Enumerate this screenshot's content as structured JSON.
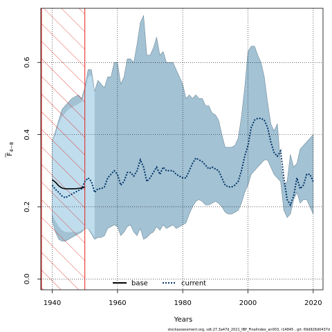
{
  "chart_data": {
    "type": "line",
    "xlabel": "Years",
    "ylabel_main": "F",
    "ylabel_sub": "4−8",
    "xlim": [
      1936.5,
      2023
    ],
    "ylim": [
      -0.03,
      0.75
    ],
    "xticks": [
      1940,
      1960,
      1980,
      2000,
      2020
    ],
    "yticks": [
      0.0,
      0.2,
      0.4,
      0.6
    ],
    "ytick_labels": [
      "0.0",
      "0.2",
      "0.4",
      "0.6"
    ],
    "grid": true,
    "hatched_region": {
      "x0": 1936.5,
      "x1": 1950
    },
    "series": [
      {
        "name": "base",
        "style": "solid",
        "color": "#000000",
        "x": [
          1940,
          1941,
          1942,
          1943,
          1944,
          1945,
          1946,
          1947,
          1948,
          1949,
          1950
        ],
        "y": [
          0.275,
          0.268,
          0.258,
          0.252,
          0.25,
          0.25,
          0.25,
          0.25,
          0.251,
          0.252,
          0.255
        ]
      },
      {
        "name": "current",
        "style": "dotted",
        "color": "#003366",
        "x": [
          1940,
          1941,
          1942,
          1943,
          1944,
          1945,
          1946,
          1947,
          1948,
          1949,
          1950,
          1951,
          1952,
          1953,
          1954,
          1955,
          1956,
          1957,
          1958,
          1959,
          1960,
          1961,
          1962,
          1963,
          1964,
          1965,
          1966,
          1967,
          1968,
          1969,
          1970,
          1971,
          1972,
          1973,
          1974,
          1975,
          1976,
          1977,
          1978,
          1979,
          1980,
          1981,
          1982,
          1983,
          1984,
          1985,
          1986,
          1987,
          1988,
          1989,
          1990,
          1991,
          1992,
          1993,
          1994,
          1995,
          1996,
          1997,
          1998,
          1999,
          2000,
          2001,
          2002,
          2003,
          2004,
          2005,
          2006,
          2007,
          2008,
          2009,
          2010,
          2011,
          2012,
          2013,
          2014,
          2015,
          2016,
          2017,
          2018,
          2019,
          2020
        ],
        "y": [
          0.26,
          0.248,
          0.24,
          0.23,
          0.225,
          0.23,
          0.235,
          0.24,
          0.245,
          0.25,
          0.27,
          0.28,
          0.27,
          0.24,
          0.25,
          0.25,
          0.255,
          0.28,
          0.29,
          0.3,
          0.29,
          0.26,
          0.27,
          0.295,
          0.295,
          0.285,
          0.3,
          0.33,
          0.31,
          0.27,
          0.28,
          0.295,
          0.31,
          0.29,
          0.31,
          0.3,
          0.3,
          0.3,
          0.29,
          0.285,
          0.28,
          0.28,
          0.3,
          0.32,
          0.335,
          0.33,
          0.325,
          0.315,
          0.305,
          0.31,
          0.305,
          0.3,
          0.28,
          0.26,
          0.255,
          0.255,
          0.26,
          0.27,
          0.3,
          0.34,
          0.37,
          0.42,
          0.44,
          0.445,
          0.445,
          0.44,
          0.42,
          0.38,
          0.35,
          0.34,
          0.355,
          0.28,
          0.22,
          0.205,
          0.23,
          0.28,
          0.25,
          0.26,
          0.29,
          0.29,
          0.27
        ]
      }
    ],
    "band_outer": {
      "x": [
        1940,
        1941,
        1942,
        1943,
        1944,
        1945,
        1946,
        1947,
        1948,
        1949,
        1950,
        1951,
        1952,
        1953,
        1954,
        1955,
        1956,
        1957,
        1958,
        1959,
        1960,
        1961,
        1962,
        1963,
        1964,
        1965,
        1966,
        1967,
        1968,
        1969,
        1970,
        1971,
        1972,
        1973,
        1974,
        1975,
        1976,
        1977,
        1978,
        1979,
        1980,
        1981,
        1982,
        1983,
        1984,
        1985,
        1986,
        1987,
        1988,
        1989,
        1990,
        1991,
        1992,
        1993,
        1994,
        1995,
        1996,
        1997,
        1998,
        1999,
        2000,
        2001,
        2002,
        2003,
        2004,
        2005,
        2006,
        2007,
        2008,
        2009,
        2010,
        2011,
        2012,
        2013,
        2014,
        2015,
        2016,
        2017,
        2018,
        2019,
        2020
      ],
      "upper": [
        0.38,
        0.41,
        0.44,
        0.47,
        0.48,
        0.49,
        0.5,
        0.505,
        0.51,
        0.5,
        0.53,
        0.58,
        0.58,
        0.52,
        0.55,
        0.54,
        0.53,
        0.56,
        0.56,
        0.6,
        0.6,
        0.54,
        0.56,
        0.61,
        0.61,
        0.6,
        0.65,
        0.71,
        0.73,
        0.62,
        0.62,
        0.64,
        0.67,
        0.62,
        0.63,
        0.6,
        0.6,
        0.6,
        0.58,
        0.56,
        0.54,
        0.5,
        0.51,
        0.5,
        0.51,
        0.5,
        0.5,
        0.48,
        0.48,
        0.46,
        0.455,
        0.44,
        0.4,
        0.365,
        0.365,
        0.365,
        0.37,
        0.39,
        0.45,
        0.53,
        0.63,
        0.645,
        0.645,
        0.62,
        0.6,
        0.56,
        0.49,
        0.43,
        0.41,
        0.43,
        0.32,
        0.26,
        0.27,
        0.345,
        0.31,
        0.32,
        0.36,
        0.37,
        0.38,
        0.39,
        0.4
      ],
      "lower": [
        0.16,
        0.13,
        0.11,
        0.105,
        0.105,
        0.11,
        0.115,
        0.12,
        0.125,
        0.13,
        0.14,
        0.14,
        0.125,
        0.11,
        0.115,
        0.115,
        0.12,
        0.14,
        0.145,
        0.15,
        0.145,
        0.12,
        0.13,
        0.145,
        0.15,
        0.13,
        0.12,
        0.14,
        0.11,
        0.115,
        0.125,
        0.13,
        0.145,
        0.135,
        0.15,
        0.14,
        0.145,
        0.15,
        0.14,
        0.145,
        0.15,
        0.155,
        0.18,
        0.2,
        0.215,
        0.22,
        0.215,
        0.205,
        0.205,
        0.21,
        0.215,
        0.21,
        0.2,
        0.185,
        0.18,
        0.18,
        0.185,
        0.19,
        0.21,
        0.24,
        0.26,
        0.29,
        0.3,
        0.31,
        0.32,
        0.33,
        0.33,
        0.31,
        0.29,
        0.28,
        0.27,
        0.19,
        0.17,
        0.18,
        0.22,
        0.24,
        0.21,
        0.22,
        0.22,
        0.2,
        0.18
      ]
    },
    "band_inner": {
      "x": [
        1940,
        1941,
        1942,
        1943,
        1944,
        1945,
        1946,
        1947,
        1948,
        1949,
        1950,
        1951,
        1952,
        1953
      ],
      "upper": [
        0.38,
        0.4,
        0.43,
        0.45,
        0.46,
        0.47,
        0.475,
        0.48,
        0.485,
        0.49,
        0.52,
        0.56,
        0.565,
        0.52
      ],
      "lower": [
        0.18,
        0.16,
        0.145,
        0.135,
        0.13,
        0.13,
        0.13,
        0.13,
        0.13,
        0.135,
        0.14,
        0.14,
        0.13,
        0.115
      ]
    },
    "colors": {
      "band_outer": "#a3c2d4",
      "band_outer_edge": "#6f8a99",
      "band_inner": "#c8e6f6",
      "hatch": "#e0201c",
      "base_line": "#000000",
      "current_line": "#003366",
      "grid": "#000000"
    },
    "legend": {
      "placement": "bottom-center",
      "items": [
        {
          "label": "base",
          "style": "solid"
        },
        {
          "label": "current",
          "style": "dotted"
        }
      ]
    }
  },
  "footer": "stockassessment.org, sdt:27.3a47d_2021_IBP_FinalIndex_an003, r14845 , git: 69d926d0437d"
}
